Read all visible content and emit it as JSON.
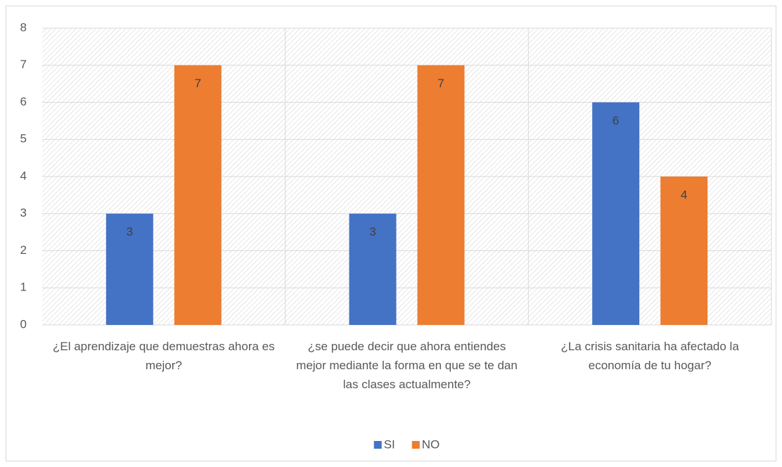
{
  "chart_data": {
    "type": "bar",
    "categories": [
      "¿El aprendizaje que demuestras ahora es mejor?",
      "¿se puede decir que ahora entiendes mejor mediante la forma en que se te dan las clases actualmente?",
      "¿La crisis sanitaria ha afectado la economía de tu hogar?"
    ],
    "series": [
      {
        "name": "SI",
        "color": "#4472c4",
        "values": [
          3,
          3,
          6
        ]
      },
      {
        "name": "NO",
        "color": "#ed7d31",
        "values": [
          7,
          7,
          4
        ]
      }
    ],
    "ylim": [
      0,
      8
    ],
    "yticks": [
      0,
      1,
      2,
      3,
      4,
      5,
      6,
      7,
      8
    ],
    "grid": true,
    "legend": "bottom"
  }
}
